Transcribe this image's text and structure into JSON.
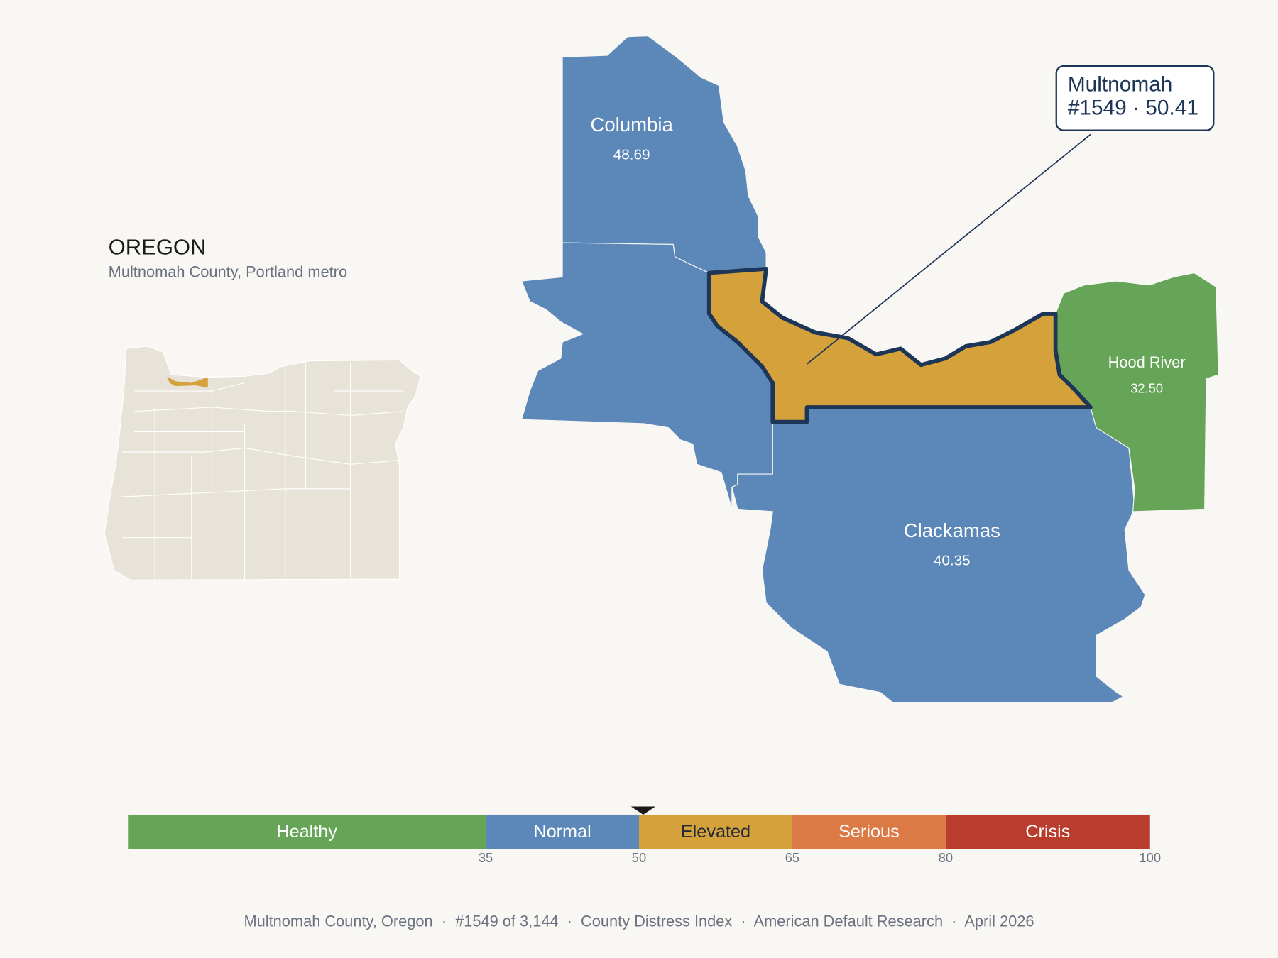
{
  "title": "OREGON",
  "subtitle": "Multnomah County, Portland metro",
  "counties": [
    {
      "name": "Columbia",
      "value": 48.69
    },
    {
      "name": "Multnomah",
      "value": 50.41,
      "value_label": "#1549 · 50.41",
      "highlight": true
    },
    {
      "name": "Clackamas",
      "value": 40.35
    },
    {
      "name": "Hood River",
      "value": 32.5,
      "value_label": "32.50"
    }
  ],
  "scale": {
    "range": [
      0,
      100
    ],
    "ticks": [
      35,
      50,
      65,
      80,
      100
    ],
    "bands": [
      {
        "label": "Healthy",
        "color": "#66a558",
        "text_color": "#ffffff"
      },
      {
        "label": "Normal",
        "color": "#5b88b8",
        "text_color": "#ffffff"
      },
      {
        "label": "Elevated",
        "color": "#d4a13a",
        "text_color": "#1f2937"
      },
      {
        "label": "Serious",
        "color": "#dc7a46",
        "text_color": "#ffffff"
      },
      {
        "label": "Crisis",
        "color": "#b93c2c",
        "text_color": "#ffffff"
      }
    ]
  },
  "footer": "Multnomah County, Oregon  ·  #1549 of 3,144  ·  County Distress Index  ·  American Default Research  ·  April 2026"
}
